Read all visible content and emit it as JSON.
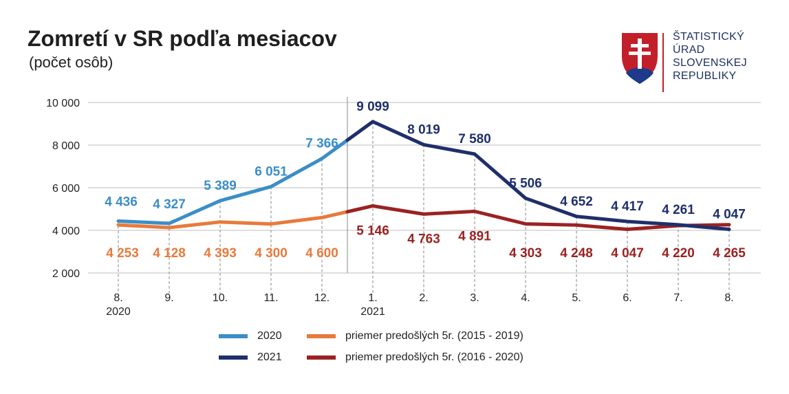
{
  "header": {
    "title": "Zomretí v SR podľa mesiacov",
    "subtitle": "(počet osôb)"
  },
  "logo": {
    "lines": [
      "ŠTATISTICKÝ",
      "ÚRAD",
      "SLOVENSKEJ",
      "REPUBLIKY"
    ],
    "colors": {
      "red": "#c21f2a",
      "blue": "#1e3a8a",
      "text": "#1e3261"
    }
  },
  "chart_data": {
    "type": "line",
    "title": "Zomretí v SR podľa mesiacov",
    "subtitle": "(počet osôb)",
    "categories": [
      "8.",
      "9.",
      "10.",
      "11.",
      "12.",
      "1.",
      "2.",
      "3.",
      "4.",
      "5.",
      "6.",
      "7.",
      "8."
    ],
    "year_labels": [
      {
        "index": 0,
        "label": "2020"
      },
      {
        "index": 5,
        "label": "2021"
      }
    ],
    "ylim": [
      2000,
      10000
    ],
    "yticks": [
      2000,
      4000,
      6000,
      8000,
      10000
    ],
    "ytick_labels": [
      "2 000",
      "4 000",
      "6 000",
      "8 000",
      "10 000"
    ],
    "grid": true,
    "legend_position": "bottom",
    "series": [
      {
        "name": "2020",
        "color": "#3b8ec8",
        "values": [
          4436,
          4327,
          5389,
          6051,
          7366,
          null,
          null,
          null,
          null,
          null,
          null,
          null,
          null
        ],
        "labels": [
          "4 436",
          "4 327",
          "5 389",
          "6 051",
          "7 366",
          "",
          "",
          "",
          "",
          "",
          "",
          "",
          ""
        ]
      },
      {
        "name": "2021",
        "color": "#1f2f6b",
        "values": [
          null,
          null,
          null,
          null,
          null,
          9099,
          8019,
          7580,
          5506,
          4652,
          4417,
          4261,
          4047
        ],
        "labels": [
          "",
          "",
          "",
          "",
          "",
          "9 099",
          "8 019",
          "7 580",
          "5 506",
          "4 652",
          "4 417",
          "4 261",
          "4 047"
        ]
      },
      {
        "name": "priemer predošlých 5r. (2015 - 2019)",
        "color": "#e87a3c",
        "values": [
          4253,
          4128,
          4393,
          4300,
          4600,
          null,
          null,
          null,
          null,
          null,
          null,
          null,
          null
        ],
        "labels": [
          "4 253",
          "4 128",
          "4 393",
          "4 300",
          "4 600",
          "",
          "",
          "",
          "",
          "",
          "",
          "",
          ""
        ]
      },
      {
        "name": "priemer predošlých 5r. (2016 - 2020)",
        "color": "#9b2222",
        "values": [
          null,
          null,
          null,
          null,
          null,
          5146,
          4763,
          4891,
          4303,
          4248,
          4047,
          4220,
          4265
        ],
        "labels": [
          "",
          "",
          "",
          "",
          "",
          "5 146",
          "4 763",
          "4 891",
          "4 303",
          "4 248",
          "4 047",
          "4 220",
          "4 265"
        ]
      }
    ]
  },
  "legend": [
    {
      "label": "2020",
      "color": "#3b8ec8"
    },
    {
      "label": "priemer predošlých 5r. (2015 - 2019)",
      "color": "#e87a3c"
    },
    {
      "label": "2021",
      "color": "#1f2f6b"
    },
    {
      "label": "priemer predošlých 5r. (2016 - 2020)",
      "color": "#9b2222"
    }
  ]
}
